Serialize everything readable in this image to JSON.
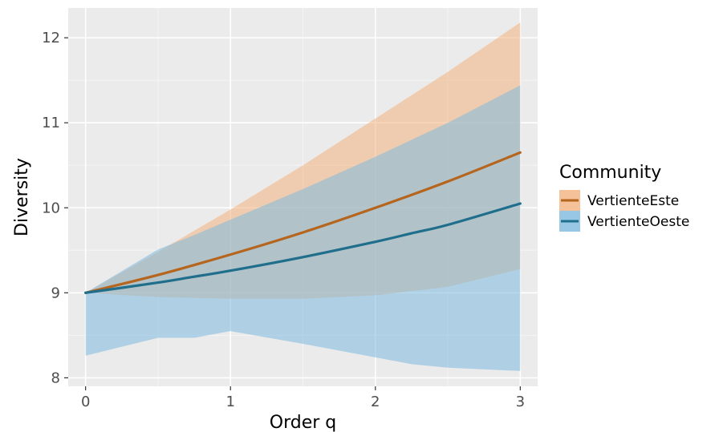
{
  "chart_data": {
    "type": "line",
    "xlabel": "Order q",
    "ylabel": "Diversity",
    "xlim": [
      -0.12,
      3.12
    ],
    "ylim": [
      7.9,
      12.35
    ],
    "x_ticks": [
      0,
      1,
      2,
      3
    ],
    "y_ticks": [
      8,
      9,
      10,
      11,
      12
    ],
    "grid": true,
    "legend": {
      "title": "Community",
      "position": "right"
    },
    "series": [
      {
        "name": "VertienteEste",
        "color": "#B5651D",
        "fill": "#F2B27E",
        "x": [
          0,
          0.5,
          1,
          1.5,
          2,
          2.5,
          3
        ],
        "y": [
          9.0,
          9.21,
          9.45,
          9.71,
          10.0,
          10.31,
          10.65
        ],
        "lower": [
          9.0,
          8.95,
          8.93,
          8.93,
          8.97,
          9.07,
          9.28
        ],
        "upper": [
          9.0,
          9.48,
          9.98,
          10.5,
          11.05,
          11.6,
          12.18
        ]
      },
      {
        "name": "VertienteOeste",
        "color": "#1F6E8C",
        "fill": "#7DB9DE",
        "x": [
          0,
          0.5,
          0.75,
          1,
          1.5,
          2,
          2.25,
          2.5,
          3
        ],
        "y": [
          9.0,
          9.12,
          9.19,
          9.26,
          9.42,
          9.6,
          9.7,
          9.8,
          10.05
        ],
        "lower": [
          8.26,
          8.47,
          8.47,
          8.55,
          8.4,
          8.24,
          8.16,
          8.12,
          8.08
        ],
        "upper": [
          9.0,
          9.51,
          9.68,
          9.86,
          10.22,
          10.6,
          10.8,
          11.0,
          11.44
        ]
      }
    ]
  }
}
